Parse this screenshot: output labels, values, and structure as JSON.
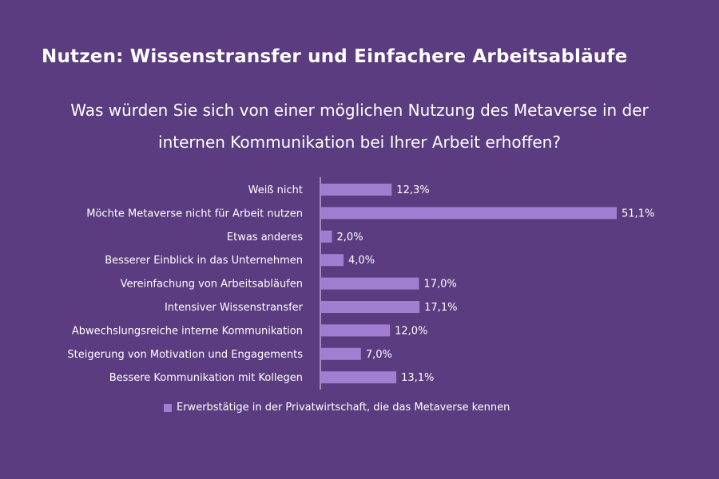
{
  "title": "Nutzen: Wissenstransfer und Einfachere Arbeitsabläufe",
  "subtitle_line1": "Was würden Sie sich von einer möglichen Nutzung des Metaverse in der",
  "subtitle_line2": "internen Kommunikation bei Ihrer Arbeit erhoffen?",
  "colors": {
    "background": "#5b3c80",
    "bar": "#a07fd0",
    "text": "#ffffff"
  },
  "chart_data": {
    "type": "bar",
    "orientation": "horizontal",
    "categories": [
      "Weiß nicht",
      "Möchte Metaverse nicht für Arbeit nutzen",
      "Etwas anderes",
      "Besserer Einblick in das Unternehmen",
      "Vereinfachung von Arbeitsabläufen",
      "Intensiver Wissenstransfer",
      "Abwechslungsreiche interne Kommunikation",
      "Steigerung von Motivation und Engagements",
      "Bessere Kommunikation mit Kollegen"
    ],
    "series": [
      {
        "name": "Erwerbstätige in der Privatwirtschaft, die das Metaverse kennen",
        "values": [
          12.3,
          51.1,
          2.0,
          4.0,
          17.0,
          17.1,
          12.0,
          7.0,
          13.1
        ],
        "labels": [
          "12,3%",
          "51,1%",
          "2,0%",
          "4,0%",
          "17,0%",
          "17,1%",
          "12,0%",
          "7,0%",
          "13,1%"
        ]
      }
    ],
    "xlim": [
      0,
      51.1
    ],
    "legend": "bottom",
    "grid": false
  }
}
